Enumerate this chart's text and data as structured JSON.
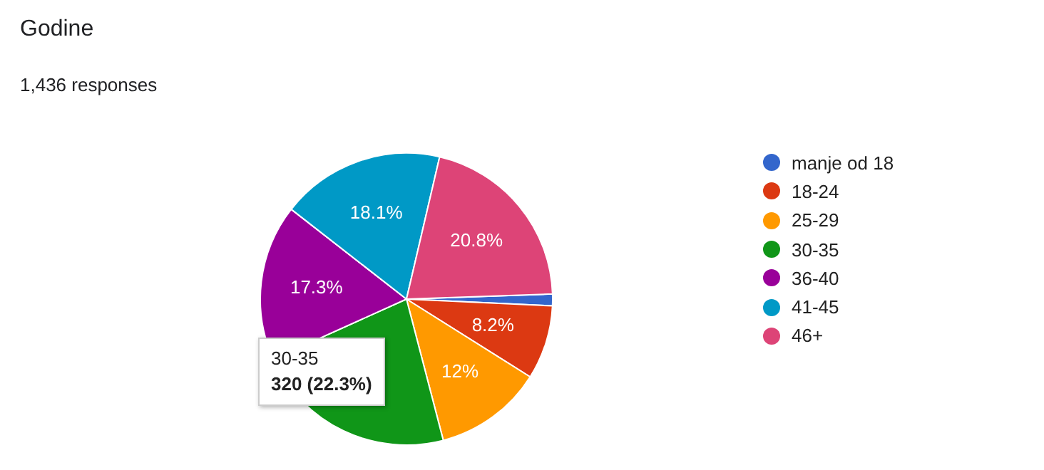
{
  "chart_data": {
    "type": "pie",
    "title": "Godine",
    "subtitle": "1,436 responses",
    "categories": [
      "manje od 18",
      "18-24",
      "25-29",
      "30-35",
      "36-40",
      "41-45",
      "46+"
    ],
    "values": [
      1.3,
      8.2,
      12,
      22.3,
      17.3,
      18.1,
      20.8
    ],
    "colors": [
      "#3366cc",
      "#dc3912",
      "#ff9900",
      "#109618",
      "#990099",
      "#0099c6",
      "#dd4477"
    ],
    "value_labels": [
      null,
      "8.2%",
      "12%",
      null,
      "17.3%",
      "18.1%",
      "20.8%"
    ],
    "legend": "right",
    "annotations": [
      "30-35",
      "320 (22.3%)"
    ]
  }
}
